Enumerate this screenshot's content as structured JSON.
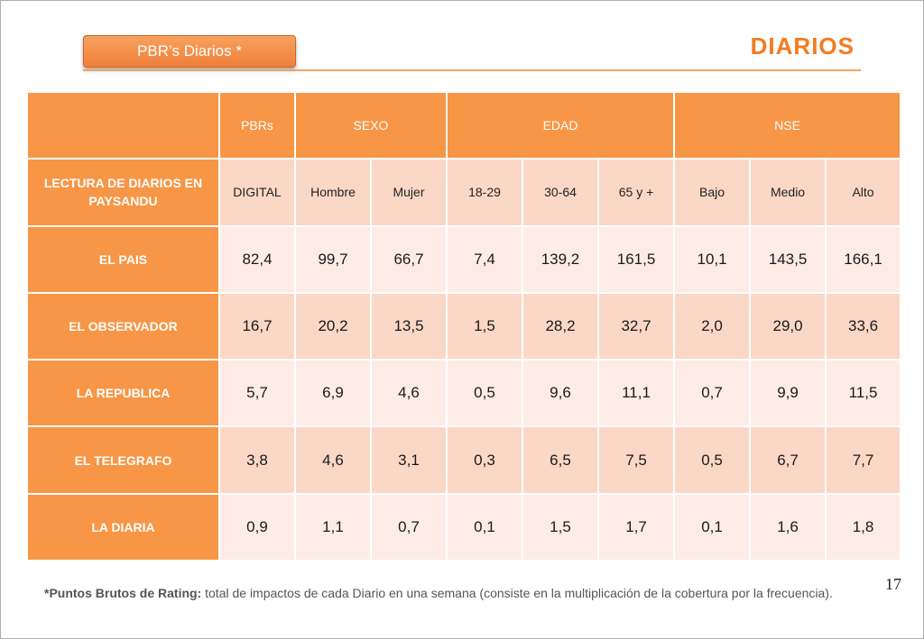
{
  "header": {
    "badge_label": "PBR’s Diarios  *",
    "title": "DIARIOS"
  },
  "table": {
    "group_headers": [
      "PBRs",
      "SEXO",
      "EDAD",
      "NSE"
    ],
    "row_header_label": "LECTURA DE DIARIOS EN PAYSANDU",
    "columns": [
      "DIGITAL",
      "Hombre",
      "Mujer",
      "18-29",
      "30-64",
      "65 y +",
      "Bajo",
      "Medio",
      "Alto"
    ],
    "rows": [
      {
        "label": "EL PAIS",
        "values": [
          "82,4",
          "99,7",
          "66,7",
          "7,4",
          "139,2",
          "161,5",
          "10,1",
          "143,5",
          "166,1"
        ]
      },
      {
        "label": "EL OBSERVADOR",
        "values": [
          "16,7",
          "20,2",
          "13,5",
          "1,5",
          "28,2",
          "32,7",
          "2,0",
          "29,0",
          "33,6"
        ]
      },
      {
        "label": "LA REPUBLICA",
        "values": [
          "5,7",
          "6,9",
          "4,6",
          "0,5",
          "9,6",
          "11,1",
          "0,7",
          "9,9",
          "11,5"
        ]
      },
      {
        "label": "EL TELEGRAFO",
        "values": [
          "3,8",
          "4,6",
          "3,1",
          "0,3",
          "6,5",
          "7,5",
          "0,5",
          "6,7",
          "7,7"
        ]
      },
      {
        "label": "LA DIARIA",
        "values": [
          "0,9",
          "1,1",
          "0,7",
          "0,1",
          "1,5",
          "1,7",
          "0,1",
          "1,6",
          "1,8"
        ]
      }
    ]
  },
  "page_number": "17",
  "footnote": {
    "term": "*Puntos Brutos de Rating:",
    "text": " total de impactos de cada Diario en una semana (consiste en la multiplicación de la cobertura por la frecuencia)."
  },
  "colors": {
    "accent": "#f79646",
    "title": "#f47b20",
    "row_odd": "#fbd7c6",
    "row_even": "#fdece6"
  }
}
